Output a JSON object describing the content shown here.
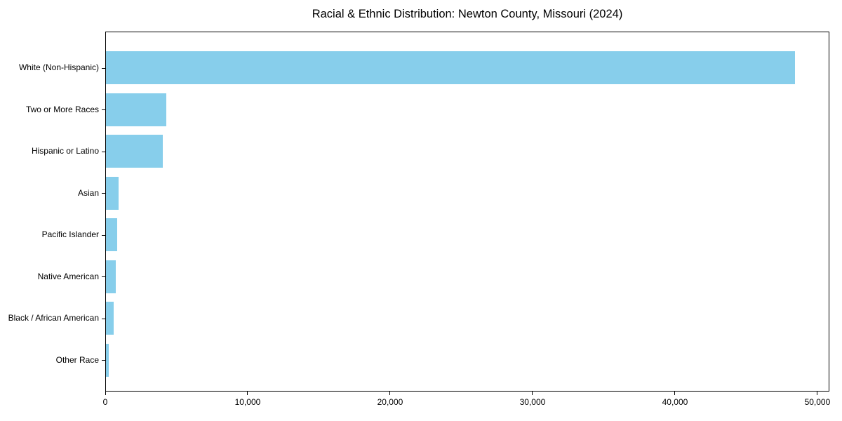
{
  "title": "Racial & Ethnic Distribution: Newton County, Missouri (2024)",
  "chart_data": {
    "type": "bar",
    "orientation": "horizontal",
    "title": "Racial & Ethnic Distribution: Newton County, Missouri (2024)",
    "xlabel": "",
    "ylabel": "",
    "categories": [
      "White (Non-Hispanic)",
      "Two or More Races",
      "Hispanic or Latino",
      "Asian",
      "Pacific Islander",
      "Native American",
      "Black / African American",
      "Other Race"
    ],
    "values": [
      48400,
      4220,
      4000,
      880,
      780,
      700,
      540,
      215
    ],
    "bar_color": "#87CEEB",
    "xlim": [
      0,
      50840
    ],
    "xticks": [
      0,
      10000,
      20000,
      30000,
      40000,
      50000
    ],
    "xtick_labels": [
      "0",
      "10,000",
      "20,000",
      "30,000",
      "40,000",
      "50,000"
    ],
    "grid": false,
    "legend": "none"
  }
}
